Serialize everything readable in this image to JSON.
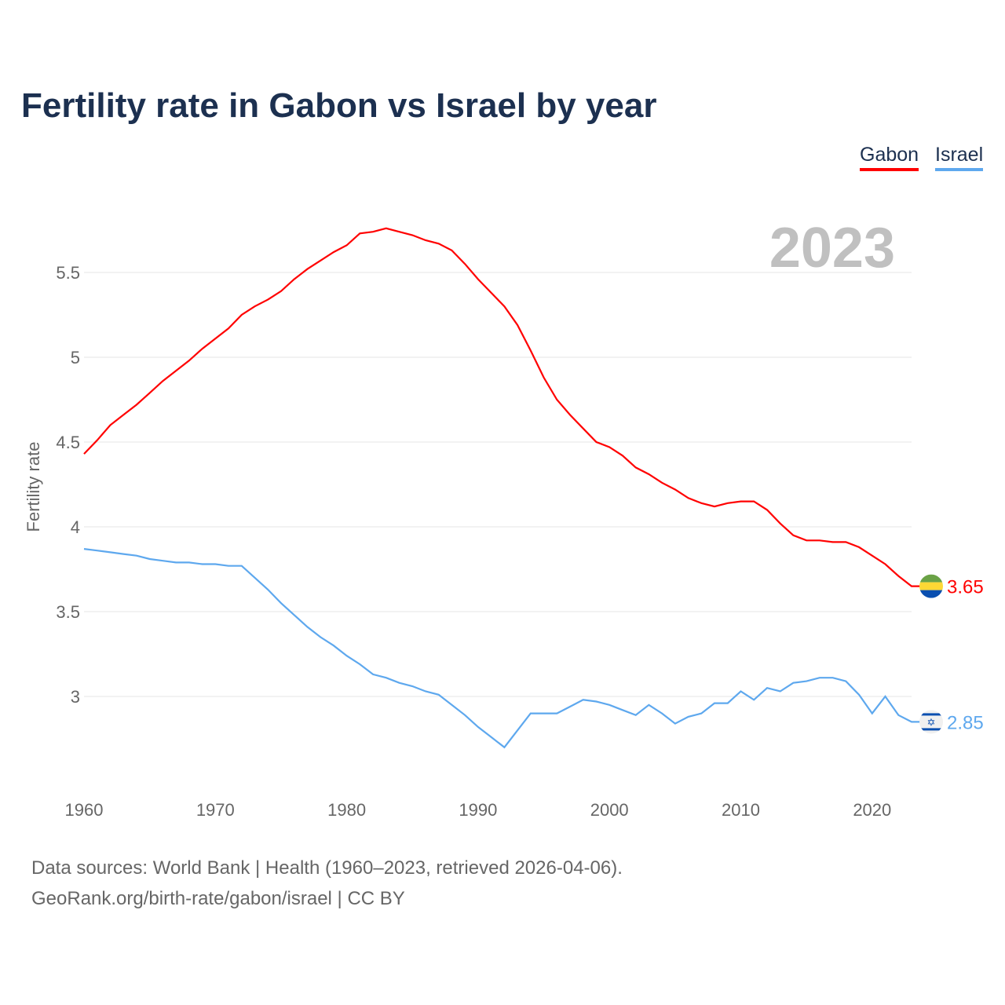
{
  "chart_data": {
    "type": "line",
    "title": "Fertility rate in Gabon vs Israel by year",
    "xlabel": "",
    "ylabel": "Fertility rate",
    "year_label": "2023",
    "xlim": [
      1960,
      2023
    ],
    "ylim": [
      2.5,
      5.8
    ],
    "x_ticks": [
      1960,
      1970,
      1980,
      1990,
      2000,
      2010,
      2020
    ],
    "y_ticks": [
      3,
      3.5,
      4,
      4.5,
      5,
      5.5
    ],
    "y_tick_labels": [
      "3",
      "3.5",
      "4",
      "4.5",
      "5",
      "5.5"
    ],
    "x_tick_labels": [
      "1960",
      "1970",
      "1980",
      "1990",
      "2000",
      "2010",
      "2020"
    ],
    "grid": true,
    "legend_position": "top-right",
    "series": [
      {
        "name": "Gabon",
        "color": "#ff0000",
        "end_label": "3.65",
        "flag": "gabon-flag",
        "values": [
          4.43,
          4.51,
          4.6,
          4.66,
          4.72,
          4.79,
          4.86,
          4.92,
          4.98,
          5.05,
          5.11,
          5.17,
          5.25,
          5.3,
          5.34,
          5.39,
          5.46,
          5.52,
          5.57,
          5.62,
          5.66,
          5.73,
          5.74,
          5.76,
          5.74,
          5.72,
          5.69,
          5.67,
          5.63,
          5.55,
          5.46,
          5.38,
          5.3,
          5.19,
          5.04,
          4.88,
          4.75,
          4.66,
          4.58,
          4.5,
          4.47,
          4.42,
          4.35,
          4.31,
          4.26,
          4.22,
          4.17,
          4.14,
          4.12,
          4.14,
          4.15,
          4.15,
          4.1,
          4.02,
          3.95,
          3.92,
          3.92,
          3.91,
          3.91,
          3.88,
          3.83,
          3.78,
          3.71,
          3.65
        ]
      },
      {
        "name": "Israel",
        "color": "#5ea8ee",
        "end_label": "2.85",
        "flag": "israel-flag",
        "values": [
          3.87,
          3.86,
          3.85,
          3.84,
          3.83,
          3.81,
          3.8,
          3.79,
          3.79,
          3.78,
          3.78,
          3.77,
          3.77,
          3.7,
          3.63,
          3.55,
          3.48,
          3.41,
          3.35,
          3.3,
          3.24,
          3.19,
          3.13,
          3.11,
          3.08,
          3.06,
          3.03,
          3.01,
          2.95,
          2.89,
          2.82,
          2.76,
          2.7,
          2.8,
          2.9,
          2.9,
          2.9,
          2.94,
          2.98,
          2.97,
          2.95,
          2.92,
          2.89,
          2.95,
          2.9,
          2.84,
          2.88,
          2.9,
          2.96,
          2.96,
          3.03,
          2.98,
          3.05,
          3.03,
          3.08,
          3.09,
          3.11,
          3.11,
          3.09,
          3.01,
          2.9,
          3.0,
          2.89,
          2.85
        ]
      }
    ]
  },
  "footer": {
    "line1": "Data sources: World Bank | Health (1960–2023, retrieved 2026-04-06).",
    "line2": "GeoRank.org/birth-rate/gabon/israel | CC BY"
  }
}
